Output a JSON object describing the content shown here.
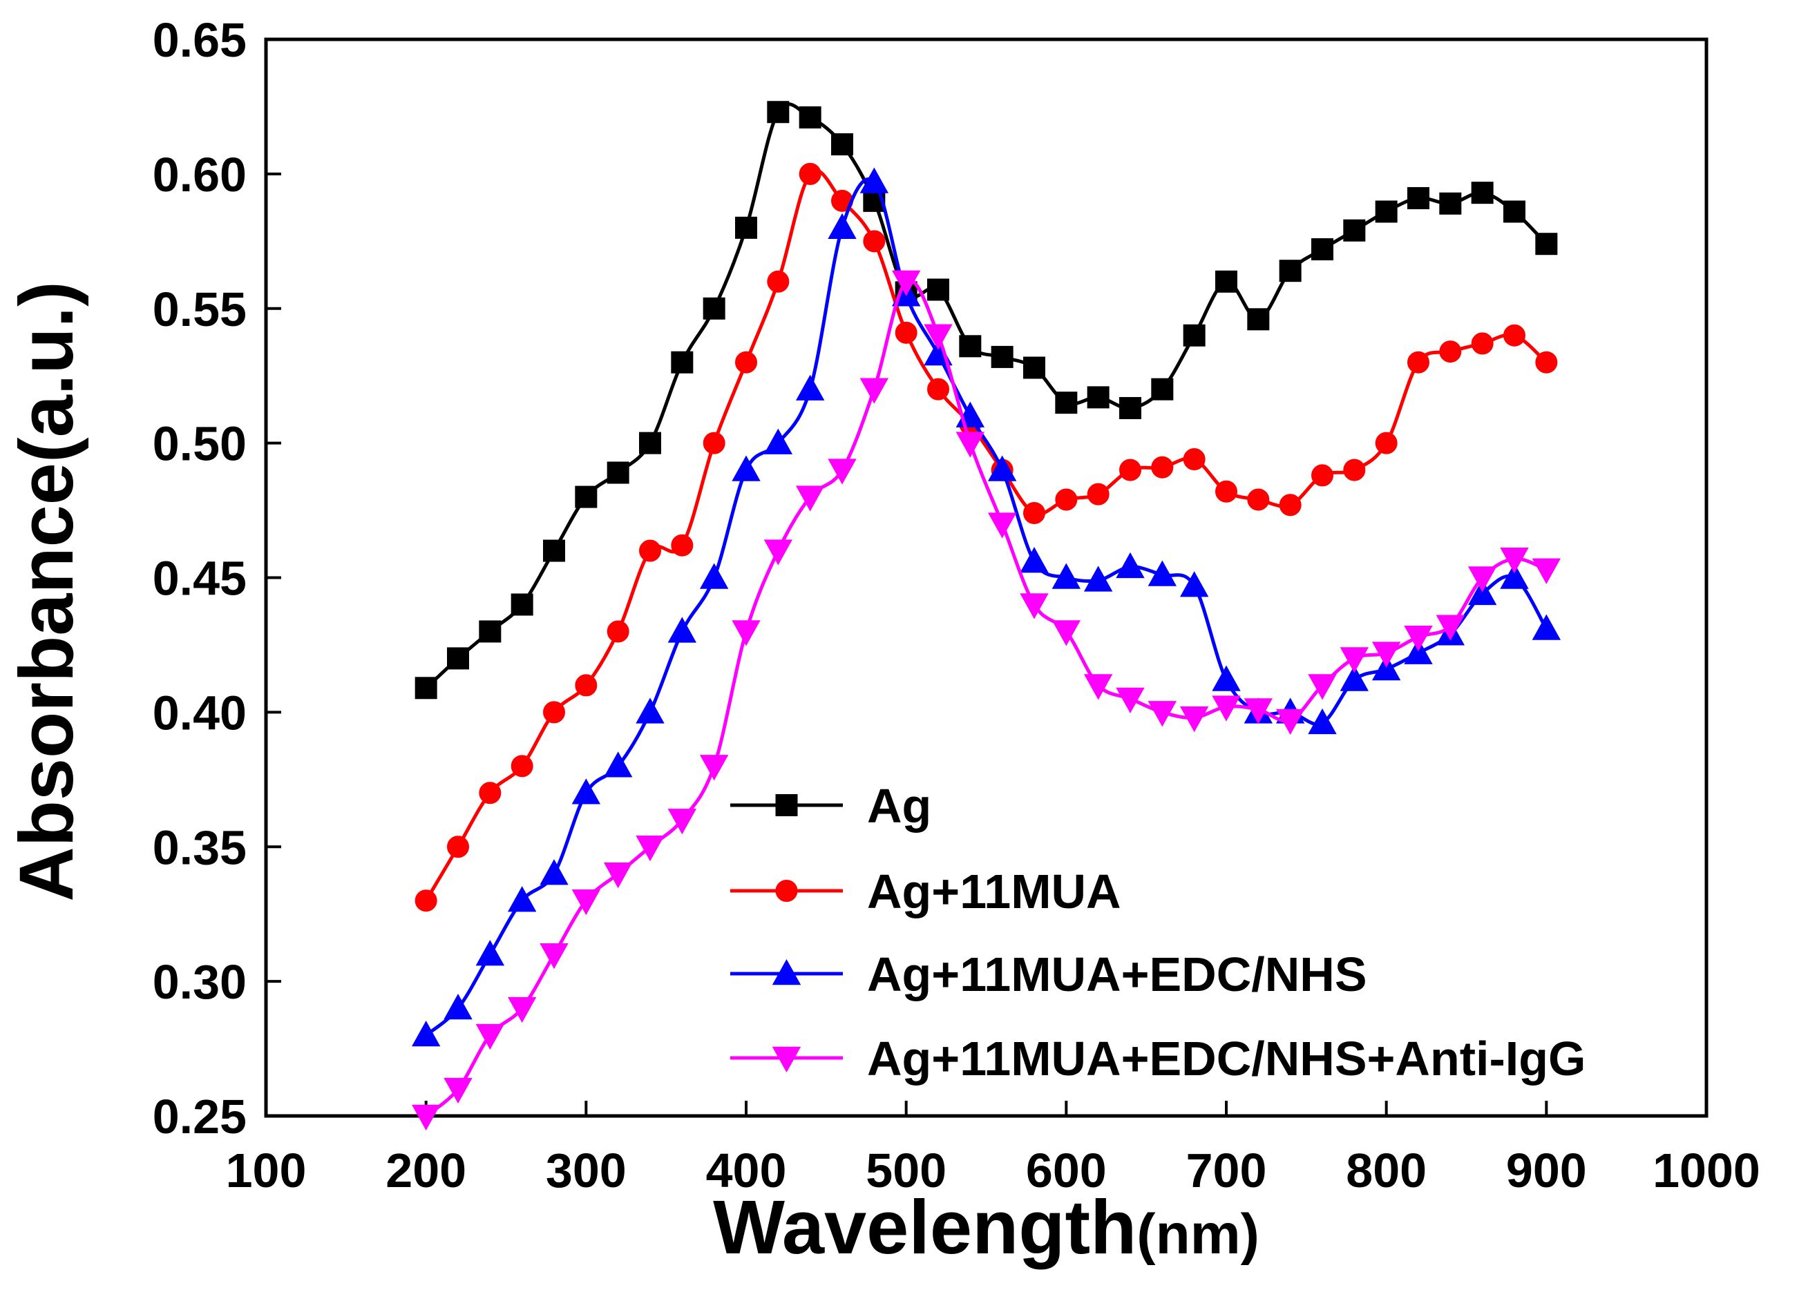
{
  "chart_data": {
    "type": "line",
    "title": "",
    "xlabel": "Wavelength",
    "xlabel_unit": "(nm)",
    "ylabel": "Absorbance(a.u.)",
    "xlim": [
      100,
      1000
    ],
    "ylim": [
      0.25,
      0.65
    ],
    "xticks": [
      "100",
      "200",
      "300",
      "400",
      "500",
      "600",
      "700",
      "800",
      "900",
      "1000"
    ],
    "yticks": [
      "0.25",
      "0.30",
      "0.35",
      "0.40",
      "0.45",
      "0.50",
      "0.55",
      "0.60",
      "0.65"
    ],
    "grid": false,
    "legend_position": "bottom-right",
    "x": [
      200,
      220,
      240,
      260,
      280,
      300,
      320,
      340,
      360,
      380,
      400,
      420,
      440,
      460,
      480,
      500,
      520,
      540,
      560,
      580,
      600,
      620,
      640,
      660,
      680,
      700,
      720,
      740,
      760,
      780,
      800,
      820,
      840,
      860,
      880,
      900
    ],
    "series": [
      {
        "name": "Ag",
        "color": "#000000",
        "marker": "square",
        "values": [
          0.409,
          0.42,
          0.43,
          0.44,
          0.46,
          0.48,
          0.489,
          0.5,
          0.53,
          0.55,
          0.58,
          0.623,
          0.621,
          0.611,
          0.59,
          0.556,
          0.557,
          0.536,
          0.532,
          0.528,
          0.515,
          0.517,
          0.513,
          0.52,
          0.54,
          0.56,
          0.546,
          0.564,
          0.572,
          0.579,
          0.586,
          0.591,
          0.589,
          0.593,
          0.586,
          0.574
        ]
      },
      {
        "name": "Ag+11MUA",
        "color": "#ff0000",
        "marker": "circle",
        "values": [
          0.33,
          0.35,
          0.37,
          0.38,
          0.4,
          0.41,
          0.43,
          0.46,
          0.462,
          0.5,
          0.53,
          0.56,
          0.6,
          0.59,
          0.575,
          0.541,
          0.52,
          0.507,
          0.49,
          0.474,
          0.479,
          0.481,
          0.49,
          0.491,
          0.494,
          0.482,
          0.479,
          0.477,
          0.488,
          0.49,
          0.5,
          0.53,
          0.534,
          0.537,
          0.54,
          0.53
        ]
      },
      {
        "name": "Ag+11MUA+EDC/NHS",
        "color": "#0000ff",
        "marker": "triangle-up",
        "values": [
          0.28,
          0.29,
          0.31,
          0.33,
          0.34,
          0.37,
          0.38,
          0.4,
          0.43,
          0.45,
          0.49,
          0.5,
          0.52,
          0.58,
          0.597,
          0.555,
          0.533,
          0.51,
          0.49,
          0.456,
          0.45,
          0.449,
          0.454,
          0.451,
          0.447,
          0.412,
          0.4,
          0.4,
          0.396,
          0.412,
          0.416,
          0.422,
          0.429,
          0.444,
          0.45,
          0.431
        ]
      },
      {
        "name": "Ag+11MUA+EDC/NHS+Anti-IgG",
        "color": "#ff00ff",
        "marker": "triangle-down",
        "values": [
          0.25,
          0.26,
          0.28,
          0.29,
          0.31,
          0.33,
          0.34,
          0.35,
          0.36,
          0.38,
          0.43,
          0.46,
          0.48,
          0.49,
          0.52,
          0.56,
          0.54,
          0.5,
          0.47,
          0.44,
          0.43,
          0.41,
          0.405,
          0.4,
          0.398,
          0.402,
          0.401,
          0.397,
          0.41,
          0.42,
          0.422,
          0.428,
          0.432,
          0.45,
          0.457,
          0.453
        ]
      }
    ]
  }
}
